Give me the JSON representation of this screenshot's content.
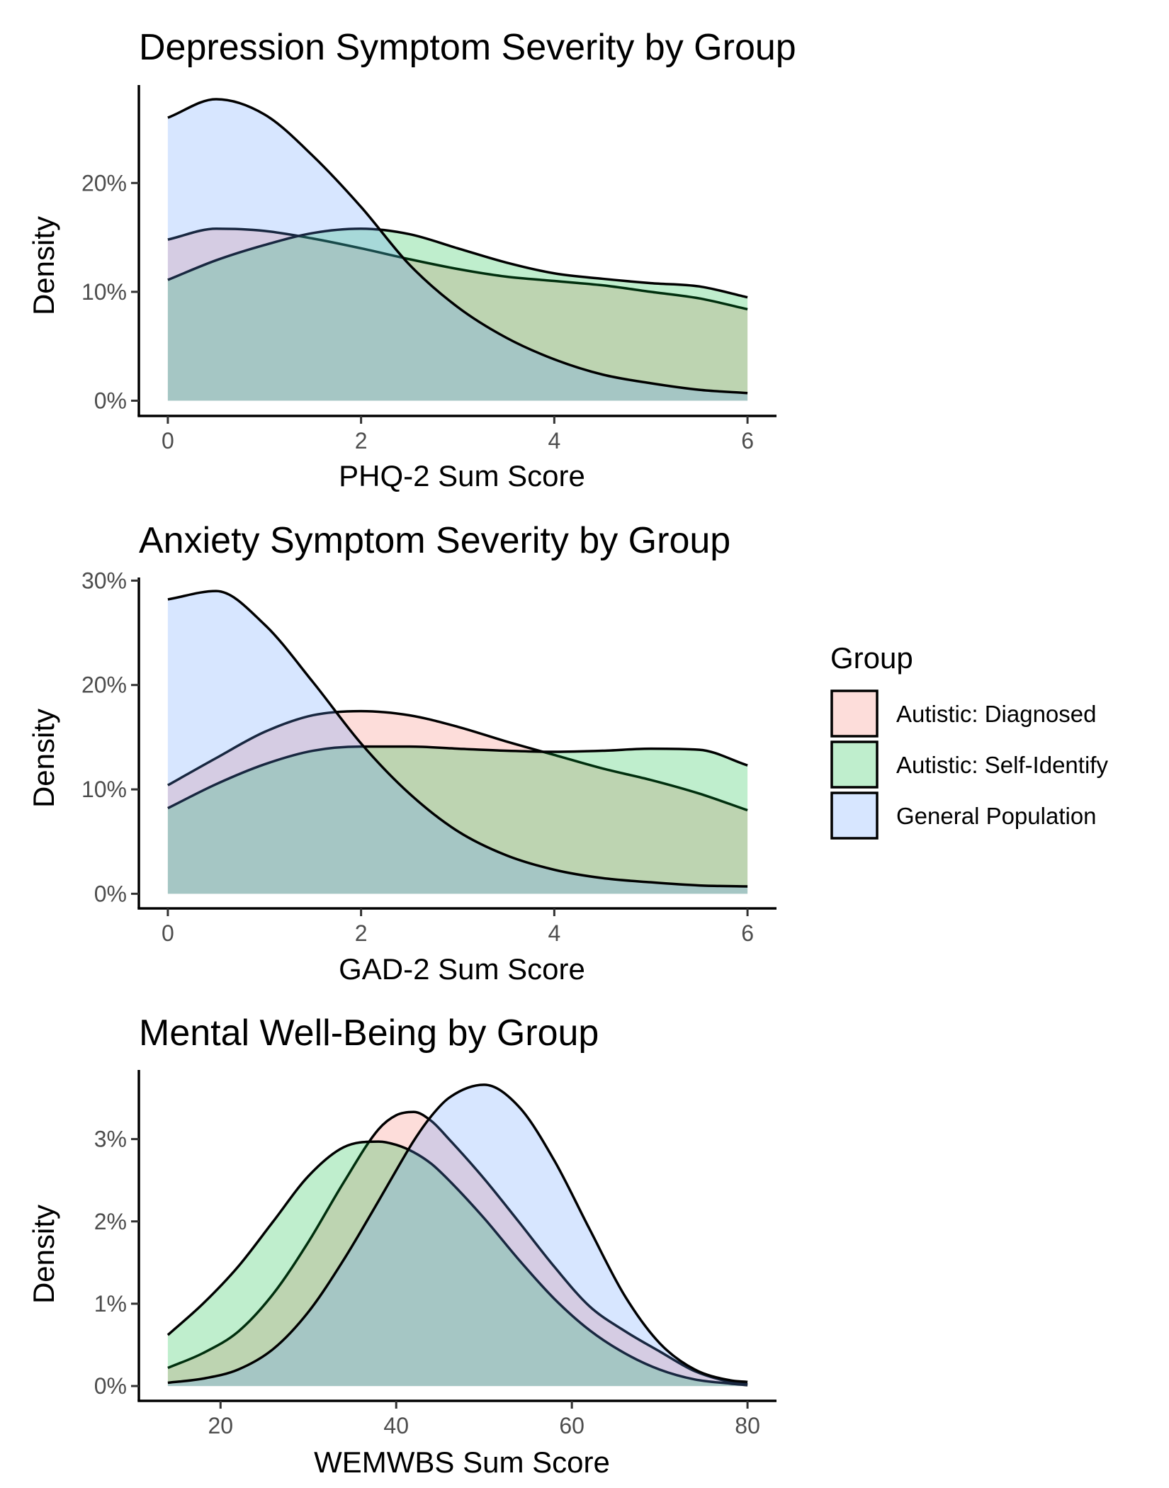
{
  "chart_data": [
    {
      "type": "area",
      "title": "Depression Symptom Severity by Group",
      "xlabel": "PHQ-2 Sum Score",
      "ylabel": "Density",
      "xlim": [
        -0.3,
        6.3
      ],
      "ylim": [
        -0.014,
        0.29
      ],
      "xticks": [
        0,
        2,
        4,
        6
      ],
      "xtick_labels": [
        "0",
        "2",
        "4",
        "6"
      ],
      "yticks": [
        0,
        0.1,
        0.2
      ],
      "ytick_labels": [
        "0%",
        "10%",
        "20%"
      ],
      "series": [
        {
          "name": "Autistic: Diagnosed",
          "x": [
            0,
            0.5,
            1,
            1.5,
            2,
            2.5,
            3,
            3.5,
            4,
            4.5,
            5,
            5.5,
            6
          ],
          "values": [
            0.148,
            0.158,
            0.156,
            0.149,
            0.14,
            0.13,
            0.121,
            0.114,
            0.11,
            0.106,
            0.1,
            0.094,
            0.084
          ]
        },
        {
          "name": "Autistic: Self-Identify",
          "x": [
            0,
            0.5,
            1,
            1.5,
            2,
            2.5,
            3,
            3.5,
            4,
            4.5,
            5,
            5.5,
            6
          ],
          "values": [
            0.111,
            0.129,
            0.143,
            0.154,
            0.158,
            0.153,
            0.14,
            0.127,
            0.117,
            0.112,
            0.108,
            0.105,
            0.095
          ]
        },
        {
          "name": "General Population",
          "x": [
            0,
            0.5,
            1,
            1.5,
            2,
            2.5,
            3,
            3.5,
            4,
            4.5,
            5,
            5.5,
            6
          ],
          "values": [
            0.26,
            0.277,
            0.263,
            0.225,
            0.178,
            0.125,
            0.086,
            0.058,
            0.038,
            0.024,
            0.016,
            0.01,
            0.007
          ]
        }
      ]
    },
    {
      "type": "area",
      "title": "Anxiety Symptom Severity by Group",
      "xlabel": "GAD-2 Sum Score",
      "ylabel": "Density",
      "xlim": [
        -0.3,
        6.3
      ],
      "ylim": [
        -0.014,
        0.303
      ],
      "xticks": [
        0,
        2,
        4,
        6
      ],
      "xtick_labels": [
        "0",
        "2",
        "4",
        "6"
      ],
      "yticks": [
        0,
        0.1,
        0.2,
        0.3
      ],
      "ytick_labels": [
        "0%",
        "10%",
        "20%",
        "30%"
      ],
      "series": [
        {
          "name": "Autistic: Diagnosed",
          "x": [
            0,
            0.5,
            1,
            1.5,
            2,
            2.5,
            3,
            3.5,
            4,
            4.5,
            5,
            5.5,
            6
          ],
          "values": [
            0.104,
            0.13,
            0.155,
            0.171,
            0.175,
            0.171,
            0.16,
            0.146,
            0.133,
            0.12,
            0.109,
            0.096,
            0.08
          ]
        },
        {
          "name": "Autistic: Self-Identify",
          "x": [
            0,
            0.5,
            1,
            1.5,
            2,
            2.5,
            3,
            3.5,
            4,
            4.5,
            5,
            5.5,
            6
          ],
          "values": [
            0.082,
            0.105,
            0.124,
            0.137,
            0.141,
            0.141,
            0.139,
            0.137,
            0.136,
            0.137,
            0.139,
            0.138,
            0.123
          ]
        },
        {
          "name": "General Population",
          "x": [
            0,
            0.5,
            1,
            1.5,
            2,
            2.5,
            3,
            3.5,
            4,
            4.5,
            5,
            5.5,
            6
          ],
          "values": [
            0.282,
            0.29,
            0.258,
            0.203,
            0.144,
            0.096,
            0.06,
            0.037,
            0.023,
            0.015,
            0.011,
            0.008,
            0.007
          ]
        }
      ]
    },
    {
      "type": "area",
      "title": "Mental Well-Being by Group",
      "xlabel": "WEMWBS Sum Score",
      "ylabel": "Density",
      "xlim": [
        10.7,
        83.3
      ],
      "ylim": [
        -0.0018,
        0.0384
      ],
      "xticks": [
        20,
        40,
        60,
        80
      ],
      "xtick_labels": [
        "20",
        "40",
        "60",
        "80"
      ],
      "yticks": [
        0,
        0.01,
        0.02,
        0.03
      ],
      "ytick_labels": [
        "0%",
        "1%",
        "2%",
        "3%"
      ],
      "series": [
        {
          "name": "Autistic: Diagnosed",
          "x": [
            14,
            18,
            22,
            26,
            30,
            34,
            38,
            40,
            42,
            44,
            46,
            50,
            54,
            58,
            62,
            66,
            70,
            74,
            78,
            80
          ],
          "values": [
            0.0022,
            0.004,
            0.0066,
            0.0112,
            0.0175,
            0.0247,
            0.0312,
            0.0329,
            0.0333,
            0.0322,
            0.03,
            0.0252,
            0.0199,
            0.0145,
            0.0097,
            0.0067,
            0.0042,
            0.0018,
            0.0005,
            0.0002
          ]
        },
        {
          "name": "Autistic: Self-Identify",
          "x": [
            14,
            18,
            22,
            26,
            30,
            34,
            38,
            40,
            42,
            44,
            46,
            50,
            54,
            58,
            62,
            66,
            70,
            74,
            78,
            80
          ],
          "values": [
            0.0062,
            0.01,
            0.0145,
            0.02,
            0.0255,
            0.029,
            0.0297,
            0.0293,
            0.0284,
            0.027,
            0.025,
            0.0204,
            0.0153,
            0.0106,
            0.0068,
            0.004,
            0.002,
            0.0008,
            0.0003,
            0.0001
          ]
        },
        {
          "name": "General Population",
          "x": [
            14,
            18,
            22,
            26,
            30,
            34,
            38,
            40,
            42,
            44,
            46,
            50,
            54,
            58,
            62,
            66,
            70,
            74,
            78,
            80
          ],
          "values": [
            0.0004,
            0.0009,
            0.002,
            0.0045,
            0.009,
            0.0153,
            0.0225,
            0.0262,
            0.0298,
            0.0328,
            0.035,
            0.0366,
            0.0339,
            0.0274,
            0.0191,
            0.011,
            0.0052,
            0.002,
            0.0007,
            0.0005
          ]
        }
      ]
    }
  ],
  "legend": {
    "title": "Group",
    "entries": [
      {
        "label": "Autistic: Diagnosed",
        "color": "#F8766D"
      },
      {
        "label": "Autistic: Self-Identify",
        "color": "#00BA38"
      },
      {
        "label": "General Population",
        "color": "#619CFF"
      }
    ],
    "placement": "right"
  },
  "style": {
    "fill_opacity": 0.25,
    "line_color": "#000000"
  }
}
